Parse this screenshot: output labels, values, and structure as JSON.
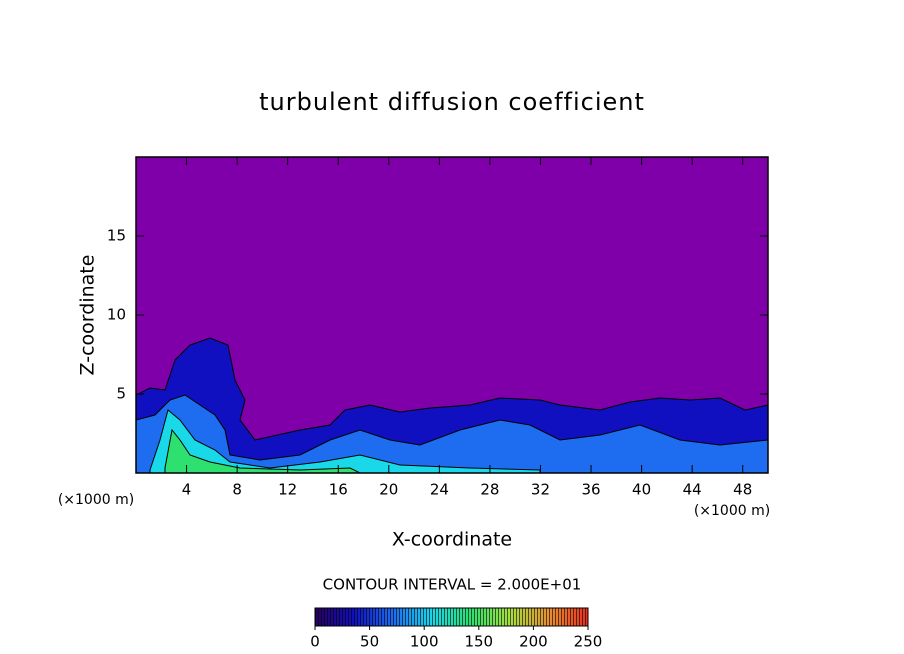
{
  "chart_data": {
    "type": "contour",
    "title": "turbulent diffusion coefficient",
    "xlabel": "X-coordinate",
    "ylabel": "Z-coordinate",
    "x_unit": "(×1000 m)",
    "y_unit": "(×1000 m)",
    "xlim": [
      0,
      50
    ],
    "xticks": [
      4,
      8,
      12,
      16,
      20,
      24,
      28,
      32,
      36,
      40,
      44,
      48
    ],
    "ylim": [
      0,
      20
    ],
    "yticks": [
      5,
      10,
      15
    ],
    "background_color": "#7f00a8",
    "colormap": [
      "#2a0060",
      "#1010c0",
      "#1e6cf0",
      "#19d8e8",
      "#2ee070",
      "#a8e040",
      "#e89030",
      "#e83020"
    ],
    "contour_interval": "CONTOUR INTERVAL = 2.000E+01",
    "colorbar": {
      "lim": [
        0,
        250
      ],
      "ticks": [
        0,
        50,
        100,
        150,
        200,
        250
      ]
    }
  }
}
